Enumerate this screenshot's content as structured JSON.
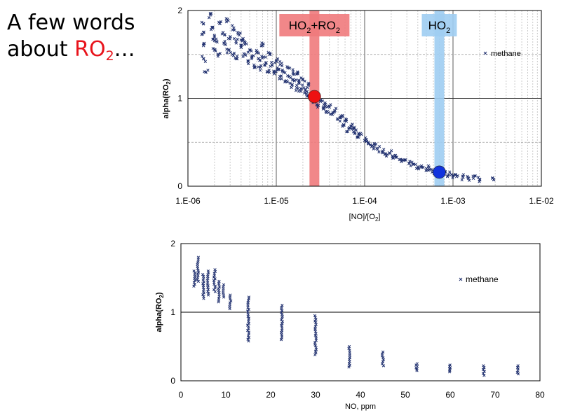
{
  "slide": {
    "title_line1": "A few words",
    "title_line2_prefix": "about ",
    "title_accent": "RO",
    "title_accent_sub": "2",
    "title_suffix": "…",
    "accent_color": "#e8141c"
  },
  "chart_data": [
    {
      "type": "scatter",
      "xscale": "log",
      "xlim": [
        1e-06,
        0.01
      ],
      "ylim": [
        0,
        2
      ],
      "xticks": [
        "1.E-06",
        "1.E-05",
        "1.E-04",
        "1.E-03",
        "1.E-02"
      ],
      "yticks": [
        "0",
        "1",
        "2"
      ],
      "xlabel_main": "[NO]/[O",
      "xlabel_sub": "2",
      "xlabel_end": "]",
      "ylabel_main": "alpha(RO",
      "ylabel_sub": "2",
      "ylabel_end": ")",
      "series": [
        {
          "name": "methane",
          "color": "#1f2f6e",
          "marker": "x",
          "points": [
            [
              1.5e-06,
              1.85
            ],
            [
              1.5e-06,
              1.75
            ],
            [
              1.5e-06,
              1.6
            ],
            [
              1.5e-06,
              1.45
            ],
            [
              1.6e-06,
              1.3
            ],
            [
              1.8e-06,
              1.95
            ],
            [
              1.9e-06,
              1.8
            ],
            [
              2e-06,
              1.7
            ],
            [
              2e-06,
              1.55
            ],
            [
              2.1e-06,
              1.65
            ],
            [
              2.2e-06,
              1.5
            ],
            [
              2.3e-06,
              1.85
            ],
            [
              2.5e-06,
              1.75
            ],
            [
              2.6e-06,
              1.62
            ],
            [
              2.8e-06,
              1.9
            ],
            [
              2.9e-06,
              1.55
            ],
            [
              3e-06,
              1.7
            ],
            [
              3.2e-06,
              1.5
            ],
            [
              3.3e-06,
              1.8
            ],
            [
              3.5e-06,
              1.65
            ],
            [
              3.6e-06,
              1.45
            ],
            [
              3.8e-06,
              1.72
            ],
            [
              4e-06,
              1.58
            ],
            [
              4.2e-06,
              1.68
            ],
            [
              4.4e-06,
              1.5
            ],
            [
              4.6e-06,
              1.62
            ],
            [
              4.8e-06,
              1.42
            ],
            [
              5e-06,
              1.55
            ],
            [
              5.3e-06,
              1.48
            ],
            [
              5.6e-06,
              1.38
            ],
            [
              6e-06,
              1.52
            ],
            [
              6.3e-06,
              1.45
            ],
            [
              6.6e-06,
              1.35
            ],
            [
              7e-06,
              1.6
            ],
            [
              7.2e-06,
              1.47
            ],
            [
              7.6e-06,
              1.4
            ],
            [
              8e-06,
              1.3
            ],
            [
              8.5e-06,
              1.5
            ],
            [
              9e-06,
              1.38
            ],
            [
              9.5e-06,
              1.28
            ],
            [
              1e-05,
              1.42
            ],
            [
              1.05e-05,
              1.33
            ],
            [
              1.1e-05,
              1.25
            ],
            [
              1.15e-05,
              1.4
            ],
            [
              1.2e-05,
              1.3
            ],
            [
              1.3e-05,
              1.2
            ],
            [
              1.35e-05,
              1.35
            ],
            [
              1.4e-05,
              1.25
            ],
            [
              1.5e-05,
              1.15
            ],
            [
              1.55e-05,
              1.3
            ],
            [
              1.6e-05,
              1.2
            ],
            [
              1.7e-05,
              1.12
            ],
            [
              1.75e-05,
              1.28
            ],
            [
              1.8e-05,
              1.18
            ],
            [
              1.9e-05,
              1.08
            ],
            [
              2e-05,
              1.22
            ],
            [
              2.05e-05,
              1.12
            ],
            [
              2.2e-05,
              1.05
            ],
            [
              2.3e-05,
              1.15
            ],
            [
              2.4e-05,
              1.02
            ],
            [
              2.6e-05,
              0.98
            ],
            [
              2.8e-05,
              1.05
            ],
            [
              3e-05,
              0.92
            ],
            [
              3.2e-05,
              0.98
            ],
            [
              3.4e-05,
              0.88
            ],
            [
              3.6e-05,
              0.93
            ],
            [
              3.8e-05,
              0.85
            ],
            [
              4e-05,
              0.9
            ],
            [
              4.3e-05,
              0.82
            ],
            [
              4.6e-05,
              0.86
            ],
            [
              5e-05,
              0.76
            ],
            [
              5.4e-05,
              0.8
            ],
            [
              5.8e-05,
              0.7
            ],
            [
              6.2e-05,
              0.74
            ],
            [
              6.6e-05,
              0.65
            ],
            [
              7e-05,
              0.68
            ],
            [
              7.5e-05,
              0.62
            ],
            [
              8e-05,
              0.64
            ],
            [
              8.5e-05,
              0.56
            ],
            [
              9e-05,
              0.6
            ],
            [
              0.0001,
              0.52
            ],
            [
              0.00011,
              0.5
            ],
            [
              0.00012,
              0.45
            ],
            [
              0.00013,
              0.47
            ],
            [
              0.00014,
              0.42
            ],
            [
              0.00016,
              0.4
            ],
            [
              0.00017,
              0.36
            ],
            [
              0.00019,
              0.38
            ],
            [
              0.00021,
              0.32
            ],
            [
              0.00023,
              0.33
            ],
            [
              0.00026,
              0.28
            ],
            [
              0.00029,
              0.3
            ],
            [
              0.00032,
              0.26
            ],
            [
              0.00036,
              0.25
            ],
            [
              0.0004,
              0.22
            ],
            [
              0.00044,
              0.23
            ],
            [
              0.0005,
              0.2
            ],
            [
              0.00055,
              0.19
            ],
            [
              0.0006,
              0.17
            ],
            [
              0.0007,
              0.16
            ],
            [
              0.0008,
              0.14
            ],
            [
              0.0009,
              0.13
            ],
            [
              0.001,
              0.12
            ],
            [
              0.0011,
              0.11
            ],
            [
              0.0013,
              0.1
            ],
            [
              0.0015,
              0.09
            ],
            [
              0.0017,
              0.09
            ],
            [
              0.002,
              0.08
            ],
            [
              0.0028,
              0.09
            ]
          ]
        }
      ],
      "bands": [
        {
          "label_main": "HO",
          "label_sub": "2",
          "label_mid": "+RO",
          "label_sub2": "2",
          "x": 2.7e-05,
          "color": "#f07a7c"
        },
        {
          "label_main": "HO",
          "label_sub": "2",
          "label_mid": "",
          "label_sub2": "",
          "x": 0.0007,
          "color": "#9fcdf2"
        }
      ],
      "highlights": [
        {
          "x": 2.7e-05,
          "y": 1.02,
          "color": "#ee1111"
        },
        {
          "x": 0.0007,
          "y": 0.16,
          "color": "#1133dd"
        }
      ]
    },
    {
      "type": "scatter",
      "xlim": [
        0,
        80
      ],
      "ylim": [
        0,
        2
      ],
      "xticks": [
        "0",
        "10",
        "20",
        "30",
        "40",
        "50",
        "60",
        "70",
        "80"
      ],
      "yticks": [
        "0",
        "1",
        "2"
      ],
      "xlabel": "NO, ppm",
      "ylabel_main": "alpha(RO",
      "ylabel_sub": "2",
      "ylabel_end": ")",
      "series": [
        {
          "name": "methane",
          "color": "#1f2f6e",
          "marker": "x",
          "columns": [
            {
              "x": 3,
              "ymin": 1.38,
              "ymax": 1.6
            },
            {
              "x": 3.8,
              "ymin": 1.45,
              "ymax": 1.8
            },
            {
              "x": 5,
              "ymin": 1.2,
              "ymax": 1.55
            },
            {
              "x": 6,
              "ymin": 1.25,
              "ymax": 1.6
            },
            {
              "x": 7.5,
              "ymin": 1.3,
              "ymax": 1.62
            },
            {
              "x": 8.5,
              "ymin": 1.15,
              "ymax": 1.45
            },
            {
              "x": 9.5,
              "ymin": 1.22,
              "ymax": 1.4
            },
            {
              "x": 11,
              "ymin": 1.05,
              "ymax": 1.25
            },
            {
              "x": 15,
              "ymin": 0.58,
              "ymax": 1.22
            },
            {
              "x": 22.5,
              "ymin": 0.6,
              "ymax": 1.1
            },
            {
              "x": 30,
              "ymin": 0.38,
              "ymax": 0.95
            },
            {
              "x": 37.5,
              "ymin": 0.2,
              "ymax": 0.5
            },
            {
              "x": 45,
              "ymin": 0.22,
              "ymax": 0.42
            },
            {
              "x": 52.5,
              "ymin": 0.15,
              "ymax": 0.25
            },
            {
              "x": 60,
              "ymin": 0.13,
              "ymax": 0.23
            },
            {
              "x": 67.5,
              "ymin": 0.08,
              "ymax": 0.22
            },
            {
              "x": 75,
              "ymin": 0.1,
              "ymax": 0.22
            }
          ]
        }
      ]
    }
  ]
}
